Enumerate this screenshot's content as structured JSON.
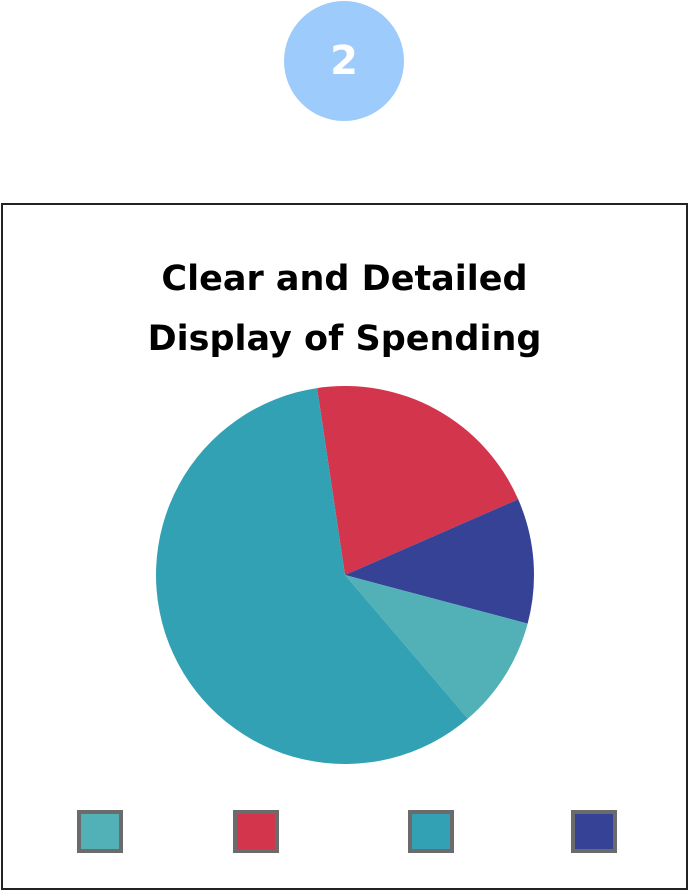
{
  "step": {
    "number": "2",
    "color": "#9dcbfb"
  },
  "chart_data": {
    "type": "pie",
    "title_line1": "Clear and Detailed",
    "title_line2": "Display of Spending",
    "start_angle_deg": -8.5,
    "slices": [
      {
        "value": 20.8,
        "color": "#d2354c"
      },
      {
        "value": 10.7,
        "color": "#364296"
      },
      {
        "value": 9.6,
        "color": "#52b1b7"
      },
      {
        "value": 58.9,
        "color": "#32a1b3"
      }
    ],
    "legend": [
      {
        "color": "#52b1b7"
      },
      {
        "color": "#d2354c"
      },
      {
        "color": "#32a1b3"
      },
      {
        "color": "#364296"
      }
    ]
  }
}
